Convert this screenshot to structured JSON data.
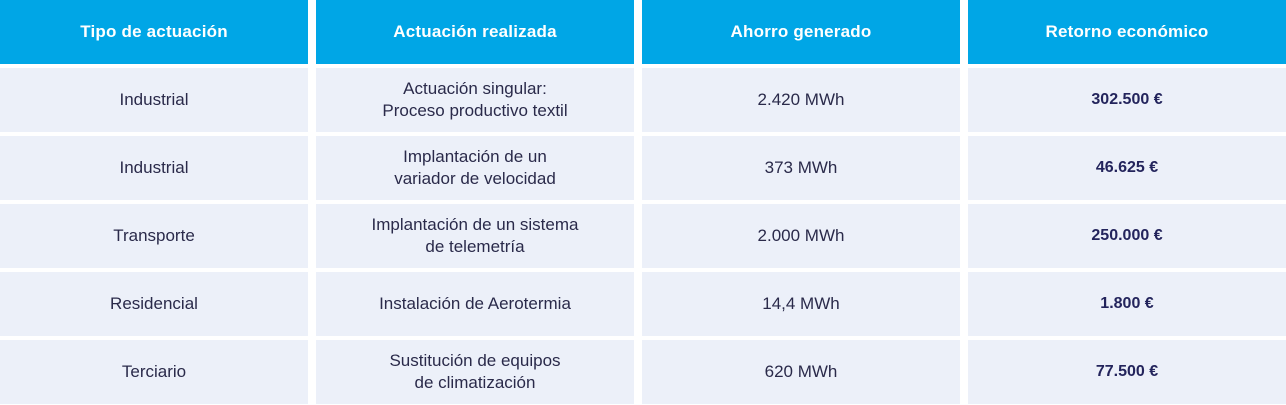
{
  "headers": [
    "Tipo de actuación",
    "Actuación realizada",
    "Ahorro generado",
    "Retorno económico"
  ],
  "rows": [
    {
      "tipo": "Industrial",
      "actuacion": "Actuación singular:\nProceso productivo textil",
      "ahorro": "2.420 MWh",
      "retorno": "302.500 €"
    },
    {
      "tipo": "Industrial",
      "actuacion": "Implantación de un\nvariador de velocidad",
      "ahorro": "373 MWh",
      "retorno": "46.625 €"
    },
    {
      "tipo": "Transporte",
      "actuacion": "Implantación de un sistema\nde telemetría",
      "ahorro": "2.000 MWh",
      "retorno": "250.000 €"
    },
    {
      "tipo": "Residencial",
      "actuacion": "Instalación de Aerotermia",
      "ahorro": "14,4 MWh",
      "retorno": "1.800 €"
    },
    {
      "tipo": "Terciario",
      "actuacion": "Sustitución de equipos\nde climatización",
      "ahorro": "620 MWh",
      "retorno": "77.500 €"
    }
  ],
  "colors": {
    "header_bg": "#00a6e6",
    "row_bg": "#ecf0f9",
    "money_text": "#23245c"
  }
}
